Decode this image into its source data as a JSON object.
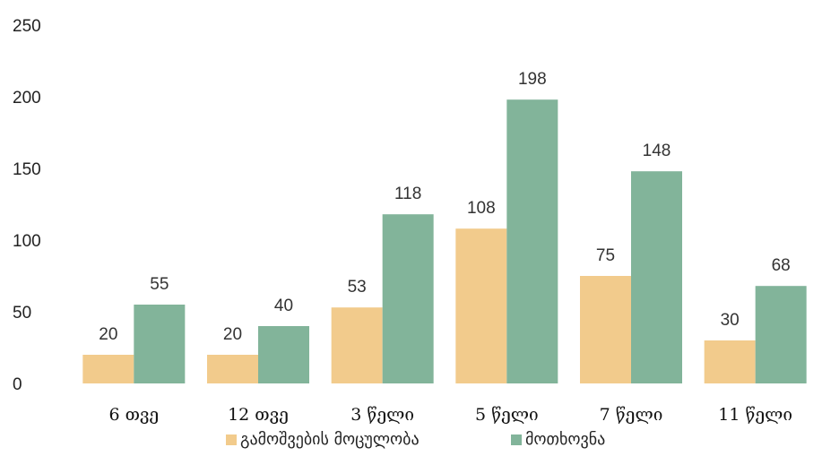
{
  "chart_data": {
    "type": "bar",
    "categories": [
      "6 თვე",
      "12 თვე",
      "3 წელი",
      "5 წელი",
      "7 წელი",
      "11 წელი"
    ],
    "series": [
      {
        "name": "გამოშვების მოცულობა",
        "color": "#F2CB8C",
        "values": [
          20,
          20,
          53,
          108,
          75,
          30
        ]
      },
      {
        "name": "მოთხოვნა",
        "color": "#82B49A",
        "values": [
          55,
          40,
          118,
          198,
          148,
          68
        ]
      }
    ],
    "title": "",
    "xlabel": "",
    "ylabel": "",
    "ylim": [
      0,
      250
    ],
    "yticks": [
      0,
      50,
      100,
      150,
      200,
      250
    ],
    "grid": false,
    "legend": "bottom"
  }
}
